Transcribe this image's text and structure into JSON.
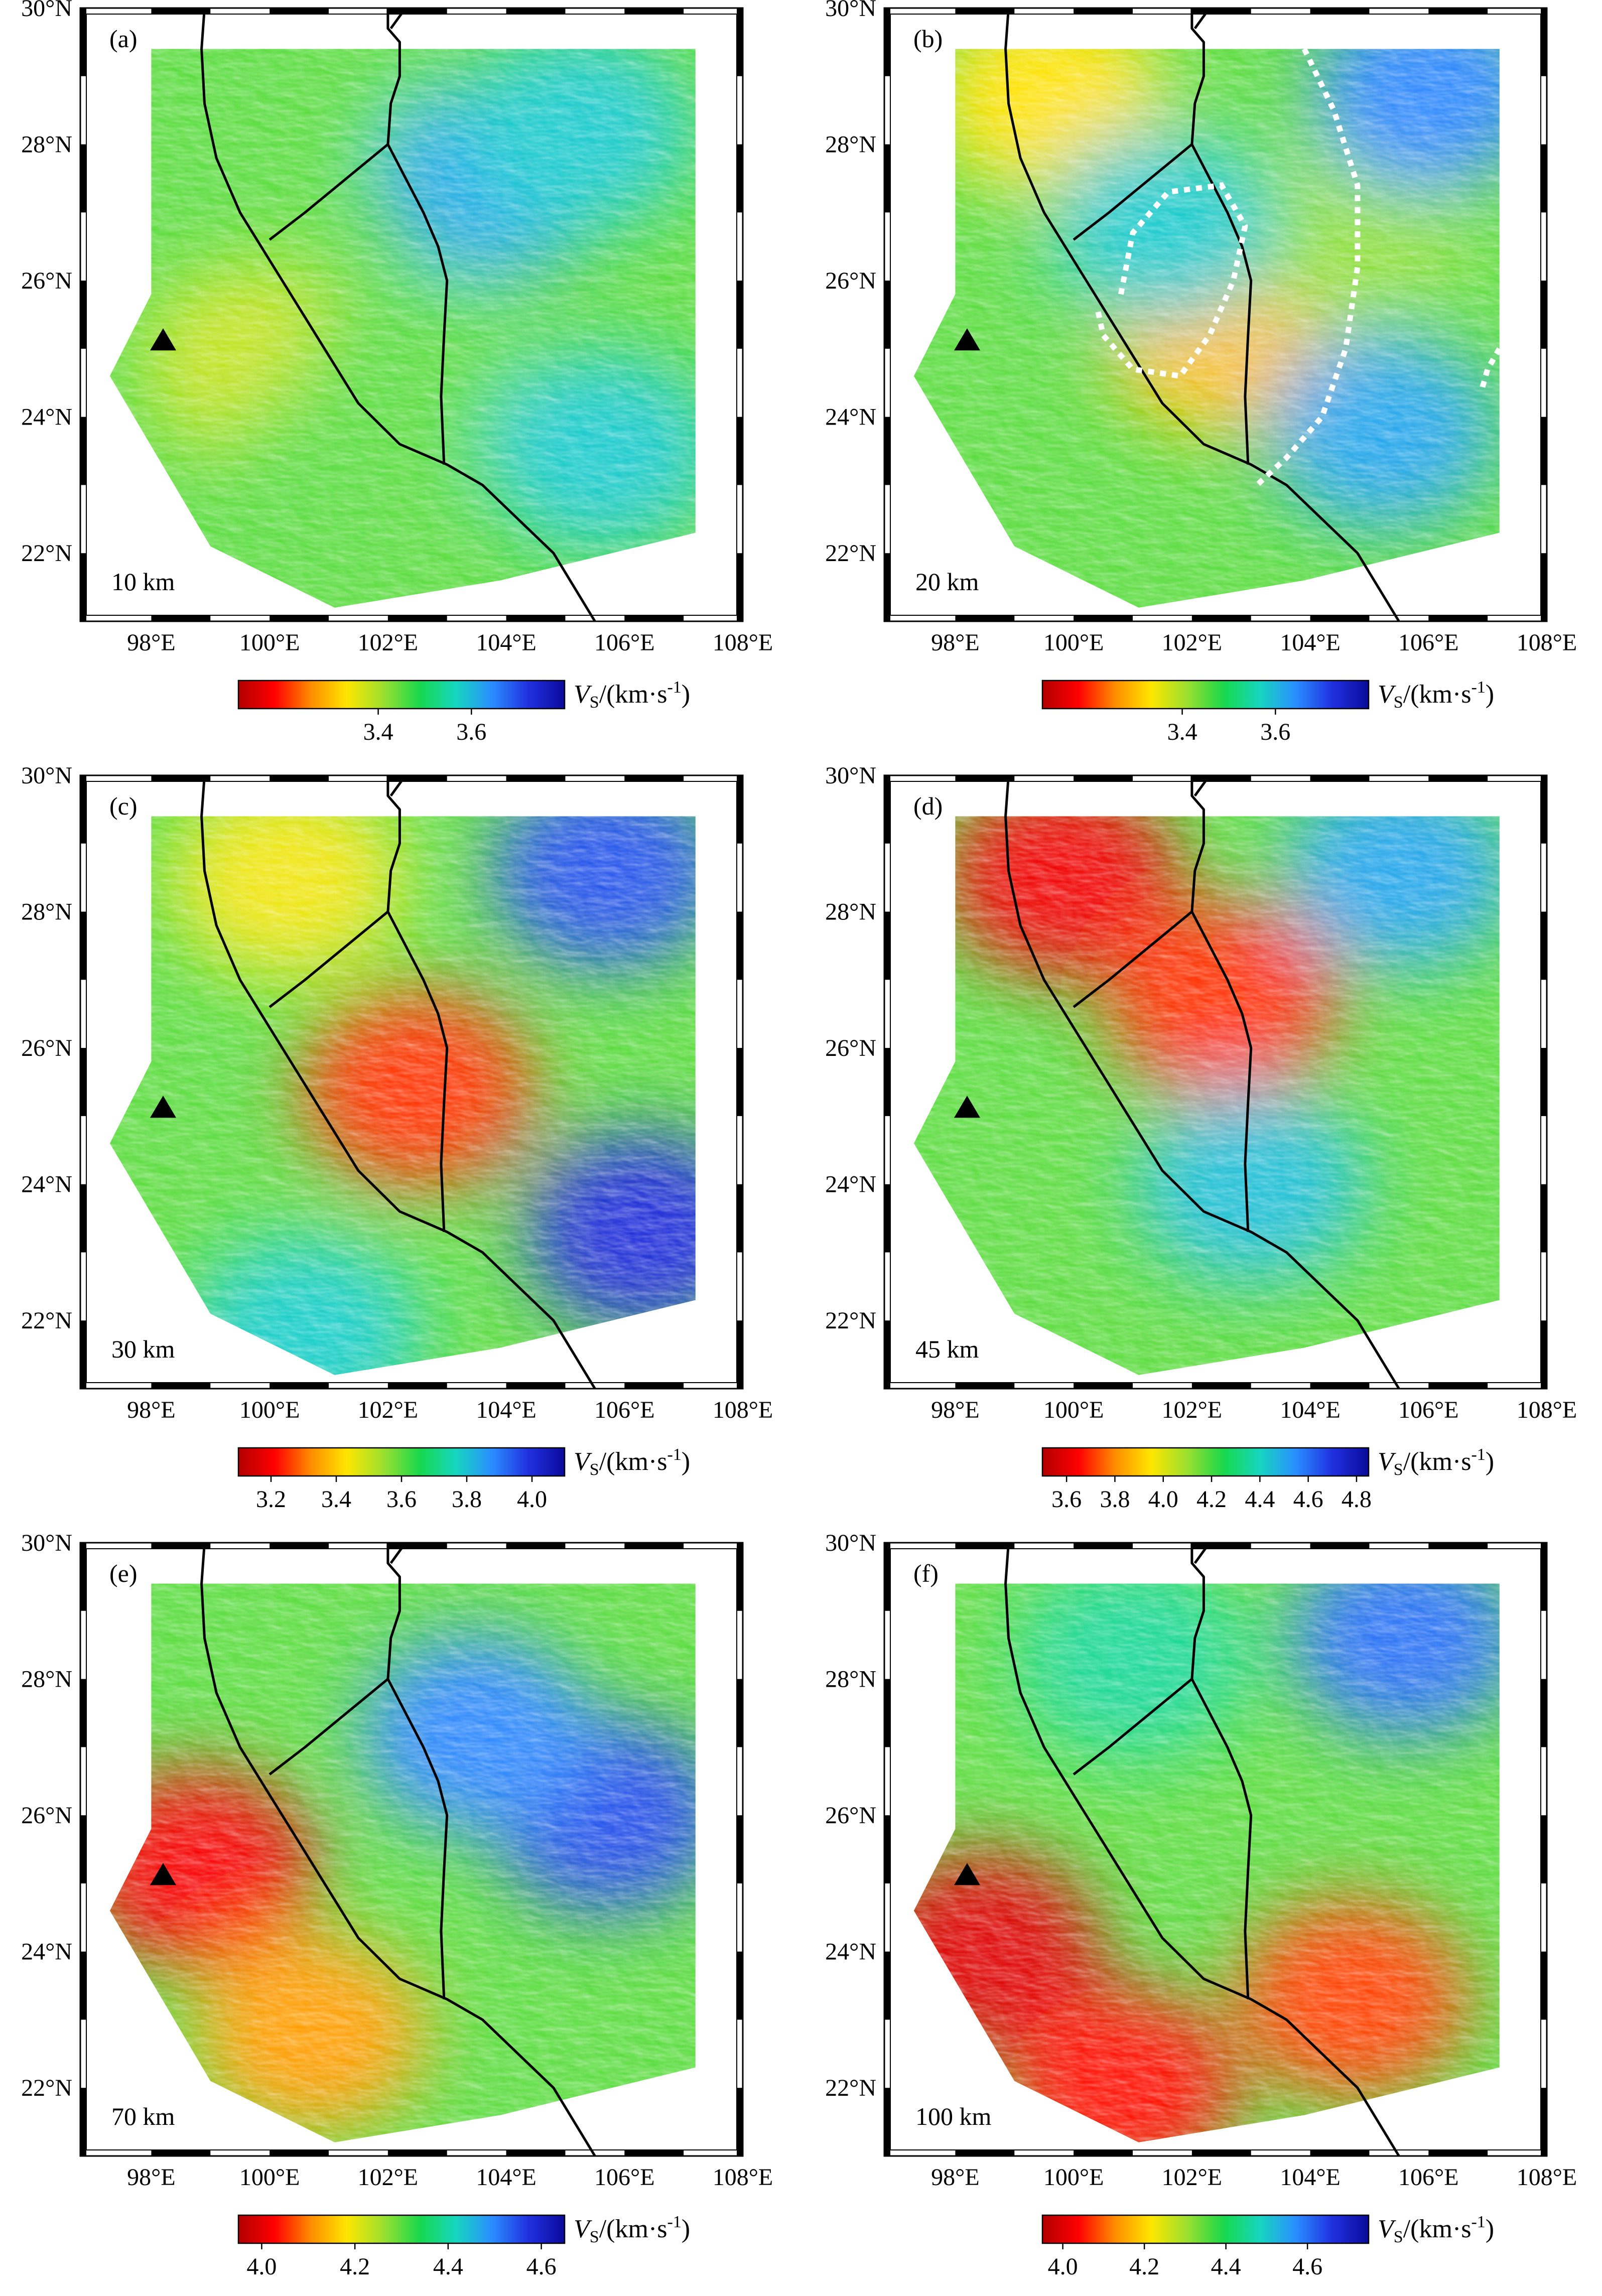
{
  "figure": {
    "lon_ticks": [
      "98°E",
      "100°E",
      "102°E",
      "104°E",
      "106°E",
      "108°E"
    ],
    "lat_ticks": [
      "30°N",
      "28°N",
      "26°N",
      "24°N",
      "22°N"
    ],
    "extent": {
      "lon": [
        96.8,
        108.0
      ],
      "lat": [
        21.0,
        30.0
      ]
    },
    "station_marker": {
      "shape": "triangle",
      "lon": 98.2,
      "lat": 25.1
    },
    "colorbar_label": {
      "symbol": "V",
      "subscript": "S",
      "unit": "/(km·s",
      "sup": "-1",
      "close": ")"
    },
    "colors": {
      "ramp": [
        "#b20000",
        "#ff0000",
        "#ff8c00",
        "#ffe600",
        "#9be02e",
        "#18d84c",
        "#16d6c0",
        "#2a8dff",
        "#2030e0",
        "#0a0a9a"
      ],
      "fault": "#000000",
      "outline": "#ffffff"
    },
    "panels": [
      {
        "letter": "(a)",
        "depth": "10 km",
        "cb_ticks": [
          "3.4",
          "3.6"
        ],
        "cb_values": [
          3.4,
          3.6
        ],
        "cb_range": [
          3.1,
          3.8
        ]
      },
      {
        "letter": "(b)",
        "depth": "20 km",
        "cb_ticks": [
          "3.4",
          "3.6"
        ],
        "cb_values": [
          3.4,
          3.6
        ],
        "cb_range": [
          3.1,
          3.8
        ]
      },
      {
        "letter": "(c)",
        "depth": "30 km",
        "cb_ticks": [
          "3.2",
          "3.4",
          "3.6",
          "3.8",
          "4.0"
        ],
        "cb_values": [
          3.2,
          3.4,
          3.6,
          3.8,
          4.0
        ],
        "cb_range": [
          3.1,
          4.1
        ]
      },
      {
        "letter": "(d)",
        "depth": "45 km",
        "cb_ticks": [
          "3.6",
          "3.8",
          "4.0",
          "4.2",
          "4.4",
          "4.6",
          "4.8"
        ],
        "cb_values": [
          3.6,
          3.8,
          4.0,
          4.2,
          4.4,
          4.6,
          4.8
        ],
        "cb_range": [
          3.5,
          4.85
        ]
      },
      {
        "letter": "(e)",
        "depth": "70 km",
        "cb_ticks": [
          "4.0",
          "4.2",
          "4.4",
          "4.6"
        ],
        "cb_values": [
          4.0,
          4.2,
          4.4,
          4.6
        ],
        "cb_range": [
          3.95,
          4.65
        ]
      },
      {
        "letter": "(f)",
        "depth": "100 km",
        "cb_ticks": [
          "4.0",
          "4.2",
          "4.4",
          "4.6"
        ],
        "cb_values": [
          4.0,
          4.2,
          4.4,
          4.6
        ],
        "cb_range": [
          3.95,
          4.75
        ]
      }
    ],
    "data_region": [
      [
        97.3,
        24.6
      ],
      [
        98.0,
        25.8
      ],
      [
        98.0,
        29.4
      ],
      [
        107.2,
        29.4
      ],
      [
        107.2,
        22.3
      ],
      [
        103.9,
        21.6
      ],
      [
        101.1,
        21.2
      ],
      [
        99.0,
        22.1
      ]
    ],
    "faults": [
      [
        [
          98.9,
          30.0
        ],
        [
          98.85,
          29.4
        ],
        [
          98.9,
          28.6
        ],
        [
          99.1,
          27.8
        ],
        [
          99.5,
          27.0
        ],
        [
          100.0,
          26.3
        ],
        [
          100.5,
          25.6
        ],
        [
          101.0,
          24.9
        ],
        [
          101.5,
          24.2
        ],
        [
          102.2,
          23.6
        ],
        [
          103.0,
          23.3
        ],
        [
          103.6,
          23.0
        ],
        [
          104.2,
          22.5
        ],
        [
          104.8,
          22.0
        ],
        [
          105.5,
          21.0
        ]
      ],
      [
        [
          102.0,
          30.0
        ],
        [
          102.0,
          29.7
        ],
        [
          102.2,
          29.5
        ],
        [
          102.2,
          29.0
        ],
        [
          102.05,
          28.6
        ],
        [
          102.0,
          28.0
        ],
        [
          102.3,
          27.5
        ],
        [
          102.6,
          27.0
        ],
        [
          102.85,
          26.5
        ],
        [
          103.0,
          26.0
        ],
        [
          102.95,
          25.2
        ],
        [
          102.9,
          24.3
        ],
        [
          102.95,
          23.3
        ]
      ],
      [
        [
          102.3,
          30.0
        ],
        [
          102.05,
          29.7
        ]
      ],
      [
        [
          102.0,
          28.0
        ],
        [
          101.3,
          27.5
        ],
        [
          100.6,
          27.0
        ],
        [
          100.0,
          26.6
        ]
      ]
    ],
    "panel_b_overlays": [
      [
        [
          100.8,
          25.8
        ],
        [
          101.0,
          26.7
        ],
        [
          101.6,
          27.3
        ],
        [
          102.5,
          27.4
        ],
        [
          102.9,
          26.8
        ],
        [
          102.7,
          26.0
        ],
        [
          102.3,
          25.2
        ],
        [
          101.8,
          24.6
        ],
        [
          101.0,
          24.7
        ],
        [
          100.5,
          25.2
        ],
        [
          100.4,
          25.6
        ]
      ],
      [
        [
          103.9,
          29.4
        ],
        [
          104.4,
          28.5
        ],
        [
          104.8,
          27.4
        ],
        [
          104.8,
          26.2
        ],
        [
          104.6,
          25.0
        ],
        [
          104.2,
          24.0
        ],
        [
          103.6,
          23.4
        ],
        [
          103.1,
          23.0
        ]
      ],
      [
        [
          107.2,
          25.0
        ],
        [
          107.0,
          24.7
        ],
        [
          106.9,
          24.4
        ]
      ]
    ]
  },
  "chart_data": [
    {
      "type": "heatmap",
      "panel": "(a)",
      "depth_label": "10 km",
      "variable": "Vs",
      "unit": "km·s-1",
      "colorbar_ticks": [
        3.4,
        3.6
      ],
      "features": [
        {
          "kind": "low",
          "lon": 99.8,
          "lat": 24.8,
          "value": 3.38
        },
        {
          "kind": "low",
          "lon": 101.0,
          "lat": 23.0,
          "value": 3.45
        },
        {
          "kind": "low",
          "lon": 102.5,
          "lat": 24.7,
          "value": 3.45
        },
        {
          "kind": "low",
          "lon": 100.8,
          "lat": 28.7,
          "value": 3.45
        },
        {
          "kind": "high",
          "lon": 103.8,
          "lat": 27.5,
          "value": 3.62
        },
        {
          "kind": "high",
          "lon": 105.2,
          "lat": 28.2,
          "value": 3.58
        },
        {
          "kind": "high",
          "lon": 105.6,
          "lat": 23.5,
          "value": 3.58
        }
      ]
    },
    {
      "type": "heatmap",
      "panel": "(b)",
      "depth_label": "20 km",
      "variable": "Vs",
      "unit": "km·s-1",
      "colorbar_ticks": [
        3.4,
        3.6
      ],
      "features": [
        {
          "kind": "low",
          "lon": 102.5,
          "lat": 25.2,
          "value": 3.3
        },
        {
          "kind": "low",
          "lon": 99.6,
          "lat": 28.7,
          "value": 3.33
        },
        {
          "kind": "low",
          "lon": 104.8,
          "lat": 26.8,
          "value": 3.42
        },
        {
          "kind": "high",
          "lon": 106.0,
          "lat": 28.8,
          "value": 3.65
        },
        {
          "kind": "high",
          "lon": 105.2,
          "lat": 23.8,
          "value": 3.62
        },
        {
          "kind": "high",
          "lon": 101.5,
          "lat": 26.8,
          "value": 3.58
        }
      ]
    },
    {
      "type": "heatmap",
      "panel": "(c)",
      "depth_label": "30 km",
      "variable": "Vs",
      "unit": "km·s-1",
      "colorbar_ticks": [
        3.2,
        3.4,
        3.6,
        3.8,
        4.0
      ],
      "features": [
        {
          "kind": "low",
          "lon": 102.5,
          "lat": 25.4,
          "value": 3.25
        },
        {
          "kind": "low",
          "lon": 100.3,
          "lat": 28.5,
          "value": 3.45
        },
        {
          "kind": "high",
          "lon": 106.3,
          "lat": 23.3,
          "value": 4.0
        },
        {
          "kind": "high",
          "lon": 105.7,
          "lat": 28.6,
          "value": 3.95
        },
        {
          "kind": "high",
          "lon": 100.6,
          "lat": 21.8,
          "value": 3.78
        }
      ]
    },
    {
      "type": "heatmap",
      "panel": "(d)",
      "depth_label": "45 km",
      "variable": "Vs",
      "unit": "km·s-1",
      "colorbar_ticks": [
        3.6,
        3.8,
        4.0,
        4.2,
        4.4,
        4.6,
        4.8
      ],
      "features": [
        {
          "kind": "low",
          "lon": 99.8,
          "lat": 28.5,
          "value": 3.62
        },
        {
          "kind": "low",
          "lon": 102.5,
          "lat": 26.7,
          "value": 3.7
        },
        {
          "kind": "high",
          "lon": 105.5,
          "lat": 28.6,
          "value": 4.5
        },
        {
          "kind": "high",
          "lon": 103.0,
          "lat": 24.0,
          "value": 4.45
        }
      ]
    },
    {
      "type": "heatmap",
      "panel": "(e)",
      "depth_label": "70 km",
      "variable": "Vs",
      "unit": "km·s-1",
      "colorbar_ticks": [
        4.0,
        4.2,
        4.4,
        4.6
      ],
      "features": [
        {
          "kind": "low",
          "lon": 98.8,
          "lat": 25.2,
          "value": 4.02
        },
        {
          "kind": "low",
          "lon": 100.7,
          "lat": 22.8,
          "value": 4.12
        },
        {
          "kind": "high",
          "lon": 105.7,
          "lat": 26.0,
          "value": 4.55
        },
        {
          "kind": "high",
          "lon": 103.5,
          "lat": 27.2,
          "value": 4.5
        }
      ]
    },
    {
      "type": "heatmap",
      "panel": "(f)",
      "depth_label": "100 km",
      "variable": "Vs",
      "unit": "km·s-1",
      "colorbar_ticks": [
        4.0,
        4.2,
        4.4,
        4.6
      ],
      "features": [
        {
          "kind": "low",
          "lon": 98.5,
          "lat": 24.0,
          "value": 4.0
        },
        {
          "kind": "low",
          "lon": 104.7,
          "lat": 23.3,
          "value": 4.08
        },
        {
          "kind": "low",
          "lon": 100.8,
          "lat": 22.0,
          "value": 4.05
        },
        {
          "kind": "high",
          "lon": 105.6,
          "lat": 28.6,
          "value": 4.6
        },
        {
          "kind": "high",
          "lon": 101.0,
          "lat": 28.3,
          "value": 4.45
        }
      ]
    }
  ]
}
